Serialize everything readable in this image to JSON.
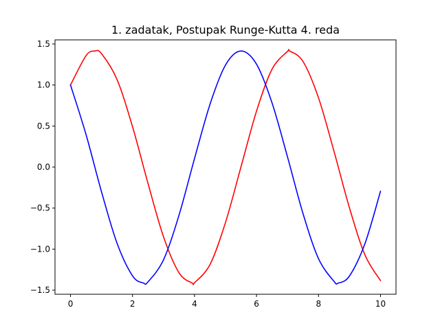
{
  "chart_data": {
    "type": "line",
    "title": "1. zadatak, Postupak Runge-Kutta 4. reda",
    "xlabel": "",
    "ylabel": "",
    "xlim": [
      -0.5,
      10.5
    ],
    "ylim": [
      -1.55,
      1.55
    ],
    "xticks": [
      0,
      2,
      4,
      6,
      8,
      10
    ],
    "xtick_labels": [
      "0",
      "2",
      "4",
      "6",
      "8",
      "10"
    ],
    "yticks": [
      -1.5,
      -1.0,
      -0.5,
      0.0,
      0.5,
      1.0,
      1.5
    ],
    "ytick_labels": [
      "−1.5",
      "−1.0",
      "−0.5",
      "0.0",
      "0.5",
      "1.0",
      "1.5"
    ],
    "grid": false,
    "legend": "none",
    "x_range": [
      0,
      10
    ],
    "series": [
      {
        "color": "#ff0000",
        "x": [
          0,
          0.5,
          0.785,
          1,
          1.5,
          2,
          2.5,
          3,
          3.5,
          3.927,
          4,
          4.5,
          5,
          5.5,
          6,
          6.5,
          7,
          7.069,
          7.5,
          8,
          8.5,
          9,
          9.5,
          10
        ],
        "y": [
          1.0,
          1.357,
          1.414,
          1.382,
          1.068,
          0.493,
          -0.199,
          -0.849,
          -1.288,
          -1.414,
          -1.41,
          -1.188,
          -0.675,
          0.003,
          0.681,
          1.192,
          1.41,
          1.414,
          1.287,
          0.844,
          0.192,
          -0.499,
          -1.072,
          -1.383
        ]
      },
      {
        "color": "#0000ff",
        "x": [
          0,
          0.5,
          1,
          1.5,
          2,
          2.356,
          2.5,
          3,
          3.5,
          4,
          4.5,
          5,
          5.498,
          6,
          6.5,
          7,
          7.5,
          8,
          8.5,
          8.639,
          9,
          9.5,
          10
        ],
        "y": [
          1.0,
          0.398,
          -0.301,
          -0.927,
          -1.325,
          -1.414,
          -1.399,
          -1.131,
          -0.587,
          0.103,
          0.765,
          1.243,
          1.414,
          1.254,
          0.783,
          0.124,
          -0.567,
          -1.116,
          -1.393,
          -1.414,
          -1.327,
          -0.931,
          -0.295
        ]
      }
    ]
  }
}
